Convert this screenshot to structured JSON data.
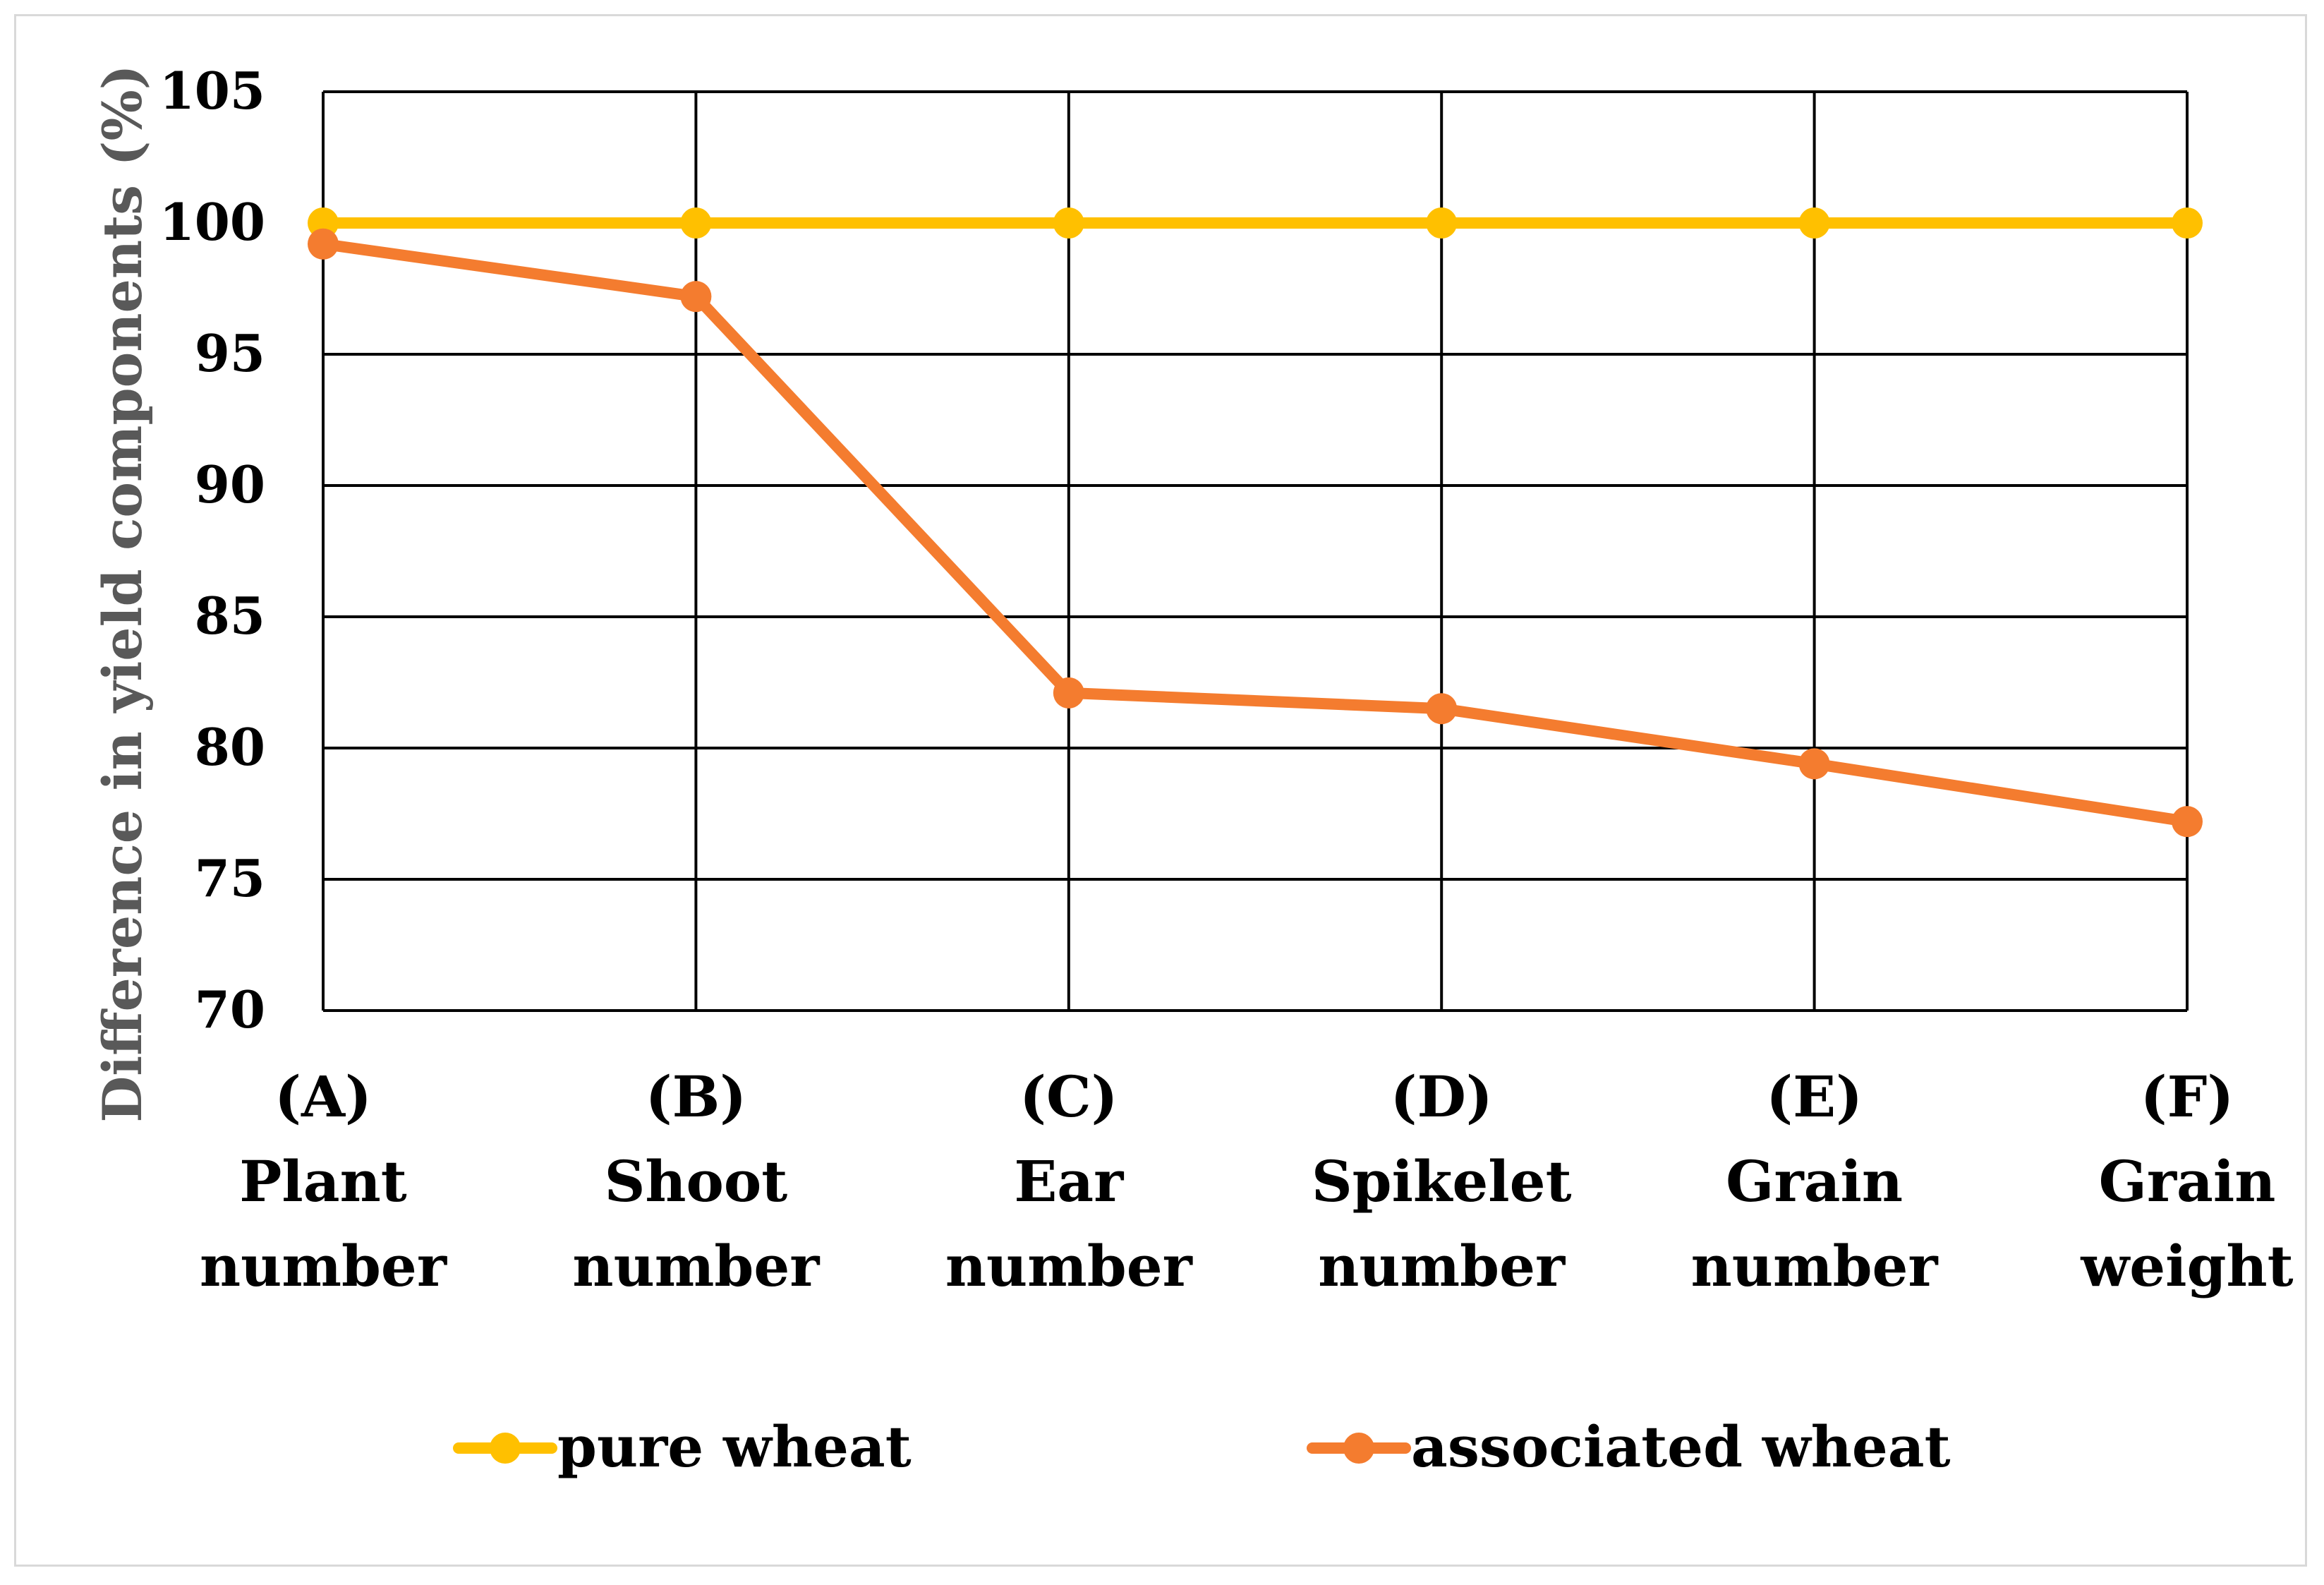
{
  "chart_data": {
    "type": "line",
    "title": "",
    "xlabel": "",
    "ylabel": "Difference in yield components (%)",
    "ylim": [
      70,
      105
    ],
    "ytick_step": 5,
    "yticks": [
      "70",
      "75",
      "80",
      "85",
      "90",
      "95",
      "100",
      "105"
    ],
    "grid": true,
    "legend_position": "bottom",
    "categories": [
      [
        "(A)",
        "Plant",
        "number"
      ],
      [
        "(B)",
        "Shoot",
        "number"
      ],
      [
        "(C)",
        "Ear",
        "number"
      ],
      [
        "(D)",
        "Spikelet",
        "number"
      ],
      [
        "(E)",
        "Grain",
        "number"
      ],
      [
        "(F)",
        "Grain",
        "weight"
      ]
    ],
    "series": [
      {
        "name": "pure wheat",
        "color": "#FFC000",
        "values": [
          100,
          100,
          100,
          100,
          100,
          100
        ]
      },
      {
        "name": "associated wheat",
        "color": "#F47C2F",
        "values": [
          99.2,
          97.2,
          82.1,
          81.5,
          79.4,
          77.2
        ]
      }
    ]
  }
}
